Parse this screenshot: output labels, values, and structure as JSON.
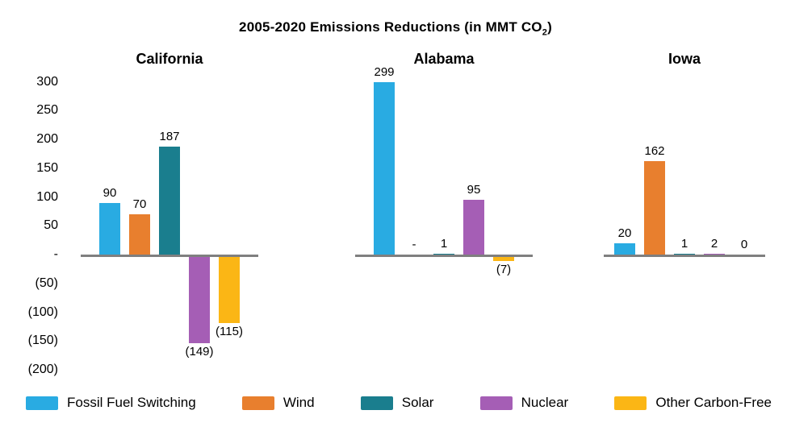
{
  "title": {
    "prefix": "2005-2020 Emissions Reductions (in MMT CO",
    "sub": "2",
    "suffix": ")"
  },
  "chart_data": {
    "type": "bar",
    "title": "2005-2020 Emissions Reductions (in MMT CO₂)",
    "groups": [
      "California",
      "Alabama",
      "Iowa"
    ],
    "series": [
      {
        "name": "Fossil Fuel Switching",
        "color": "#29ABE2",
        "values": [
          90,
          299,
          20
        ],
        "labels": [
          "90",
          "299",
          "20"
        ]
      },
      {
        "name": "Wind",
        "color": "#E87F2E",
        "values": [
          70,
          0,
          162
        ],
        "labels": [
          "70",
          "-",
          "162"
        ]
      },
      {
        "name": "Solar",
        "color": "#1A7E8E",
        "values": [
          187,
          1,
          1
        ],
        "labels": [
          "187",
          "1",
          "1"
        ]
      },
      {
        "name": "Nuclear",
        "color": "#A55EB5",
        "values": [
          -149,
          95,
          2
        ],
        "labels": [
          "(149)",
          "95",
          "2"
        ]
      },
      {
        "name": "Other Carbon-Free",
        "color": "#FBB615",
        "values": [
          -115,
          -7,
          0
        ],
        "labels": [
          "(115)",
          "(7)",
          "0"
        ]
      }
    ],
    "ylim": [
      -200,
      300
    ],
    "y_ticks": [
      {
        "value": 300,
        "label": "300"
      },
      {
        "value": 250,
        "label": "250"
      },
      {
        "value": 200,
        "label": "200"
      },
      {
        "value": 150,
        "label": "150"
      },
      {
        "value": 100,
        "label": "100"
      },
      {
        "value": 50,
        "label": "50"
      },
      {
        "value": 0,
        "label": "-"
      },
      {
        "value": -50,
        "label": "(50)"
      },
      {
        "value": -100,
        "label": "(100)"
      },
      {
        "value": -150,
        "label": "(150)"
      },
      {
        "value": -200,
        "label": "(200)"
      }
    ],
    "axis_line_color": "#7F7F7F",
    "grid": false,
    "legend_position": "bottom"
  }
}
